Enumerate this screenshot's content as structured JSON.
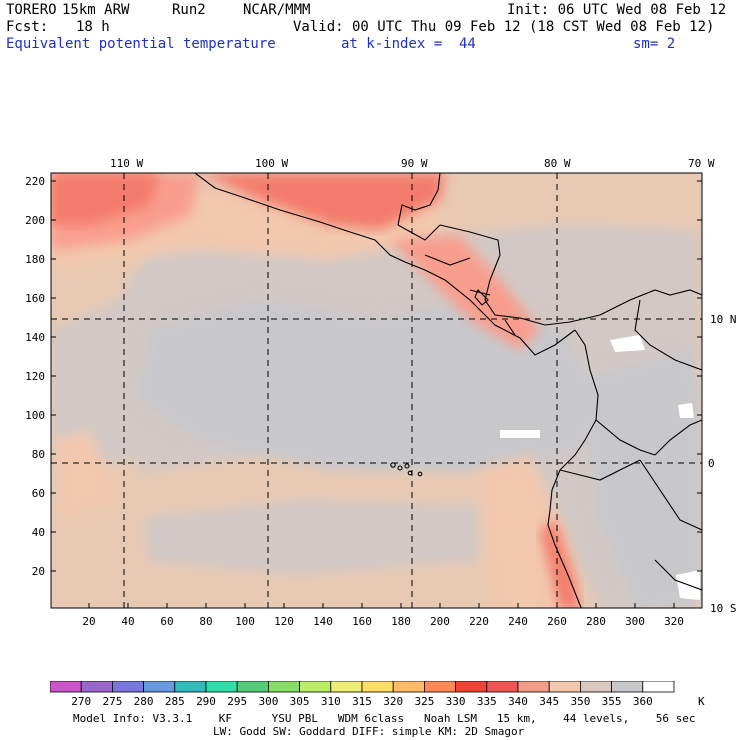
{
  "header": {
    "model": "TORERO",
    "resolution": "15km ARW",
    "run": "Run2",
    "org": "NCAR/MMM",
    "init": "Init: 06 UTC Wed 08 Feb 12",
    "fcst_label": "Fcst:",
    "fcst_value": "18 h",
    "valid": "Valid: 00 UTC Thu 09 Feb 12 (18 CST Wed 08 Feb 12)",
    "field": "Equivalent potential temperature",
    "level": "at k-index =  44",
    "smooth": "sm= 2"
  },
  "map": {
    "top_lon_labels": [
      "110 W",
      "100 W",
      "90 W",
      "80 W",
      "70 W"
    ],
    "right_lat_labels": [
      "10 N",
      "0",
      "10 S"
    ],
    "y_grid_labels": [
      "220",
      "200",
      "180",
      "160",
      "140",
      "120",
      "100",
      "80",
      "60",
      "40",
      "20"
    ],
    "x_grid_labels": [
      "20",
      "40",
      "60",
      "80",
      "100",
      "120",
      "140",
      "160",
      "180",
      "200",
      "220",
      "240",
      "260",
      "280",
      "300",
      "320"
    ],
    "colors": {
      "c345": "#e8c9b3",
      "c340": "#f2c8ae",
      "c350": "#d2c9c6",
      "c355": "#c8c8cc",
      "c360": "#ffffff",
      "c330": "#f47b6c",
      "c335": "#f99e8d",
      "c325": "#f2524c",
      "coast": "#000000"
    }
  },
  "colorbar": {
    "labels": [
      "270",
      "275",
      "280",
      "285",
      "290",
      "295",
      "300",
      "305",
      "310",
      "315",
      "320",
      "325",
      "330",
      "335",
      "340",
      "345",
      "350",
      "355",
      "360"
    ],
    "unit": "K",
    "colors": [
      "#cc55cc",
      "#9966cc",
      "#7777dd",
      "#6699dd",
      "#33bbbb",
      "#33ddaa",
      "#55cc77",
      "#88dd66",
      "#bbee66",
      "#eeee77",
      "#ffdd66",
      "#ffbb66",
      "#ff8855",
      "#ee4433",
      "#ee5555",
      "#f59c88",
      "#f2c8ae",
      "#d8c8c0",
      "#c8c8cc",
      "#ffffff"
    ]
  },
  "footer": {
    "line1": "Model Info: V3.3.1    KF      YSU PBL   WDM 6class   Noah LSM   15 km,    44 levels,    56 sec",
    "line2": "LW: Godd SW: Goddard DIFF: simple KM: 2D Smagor"
  }
}
